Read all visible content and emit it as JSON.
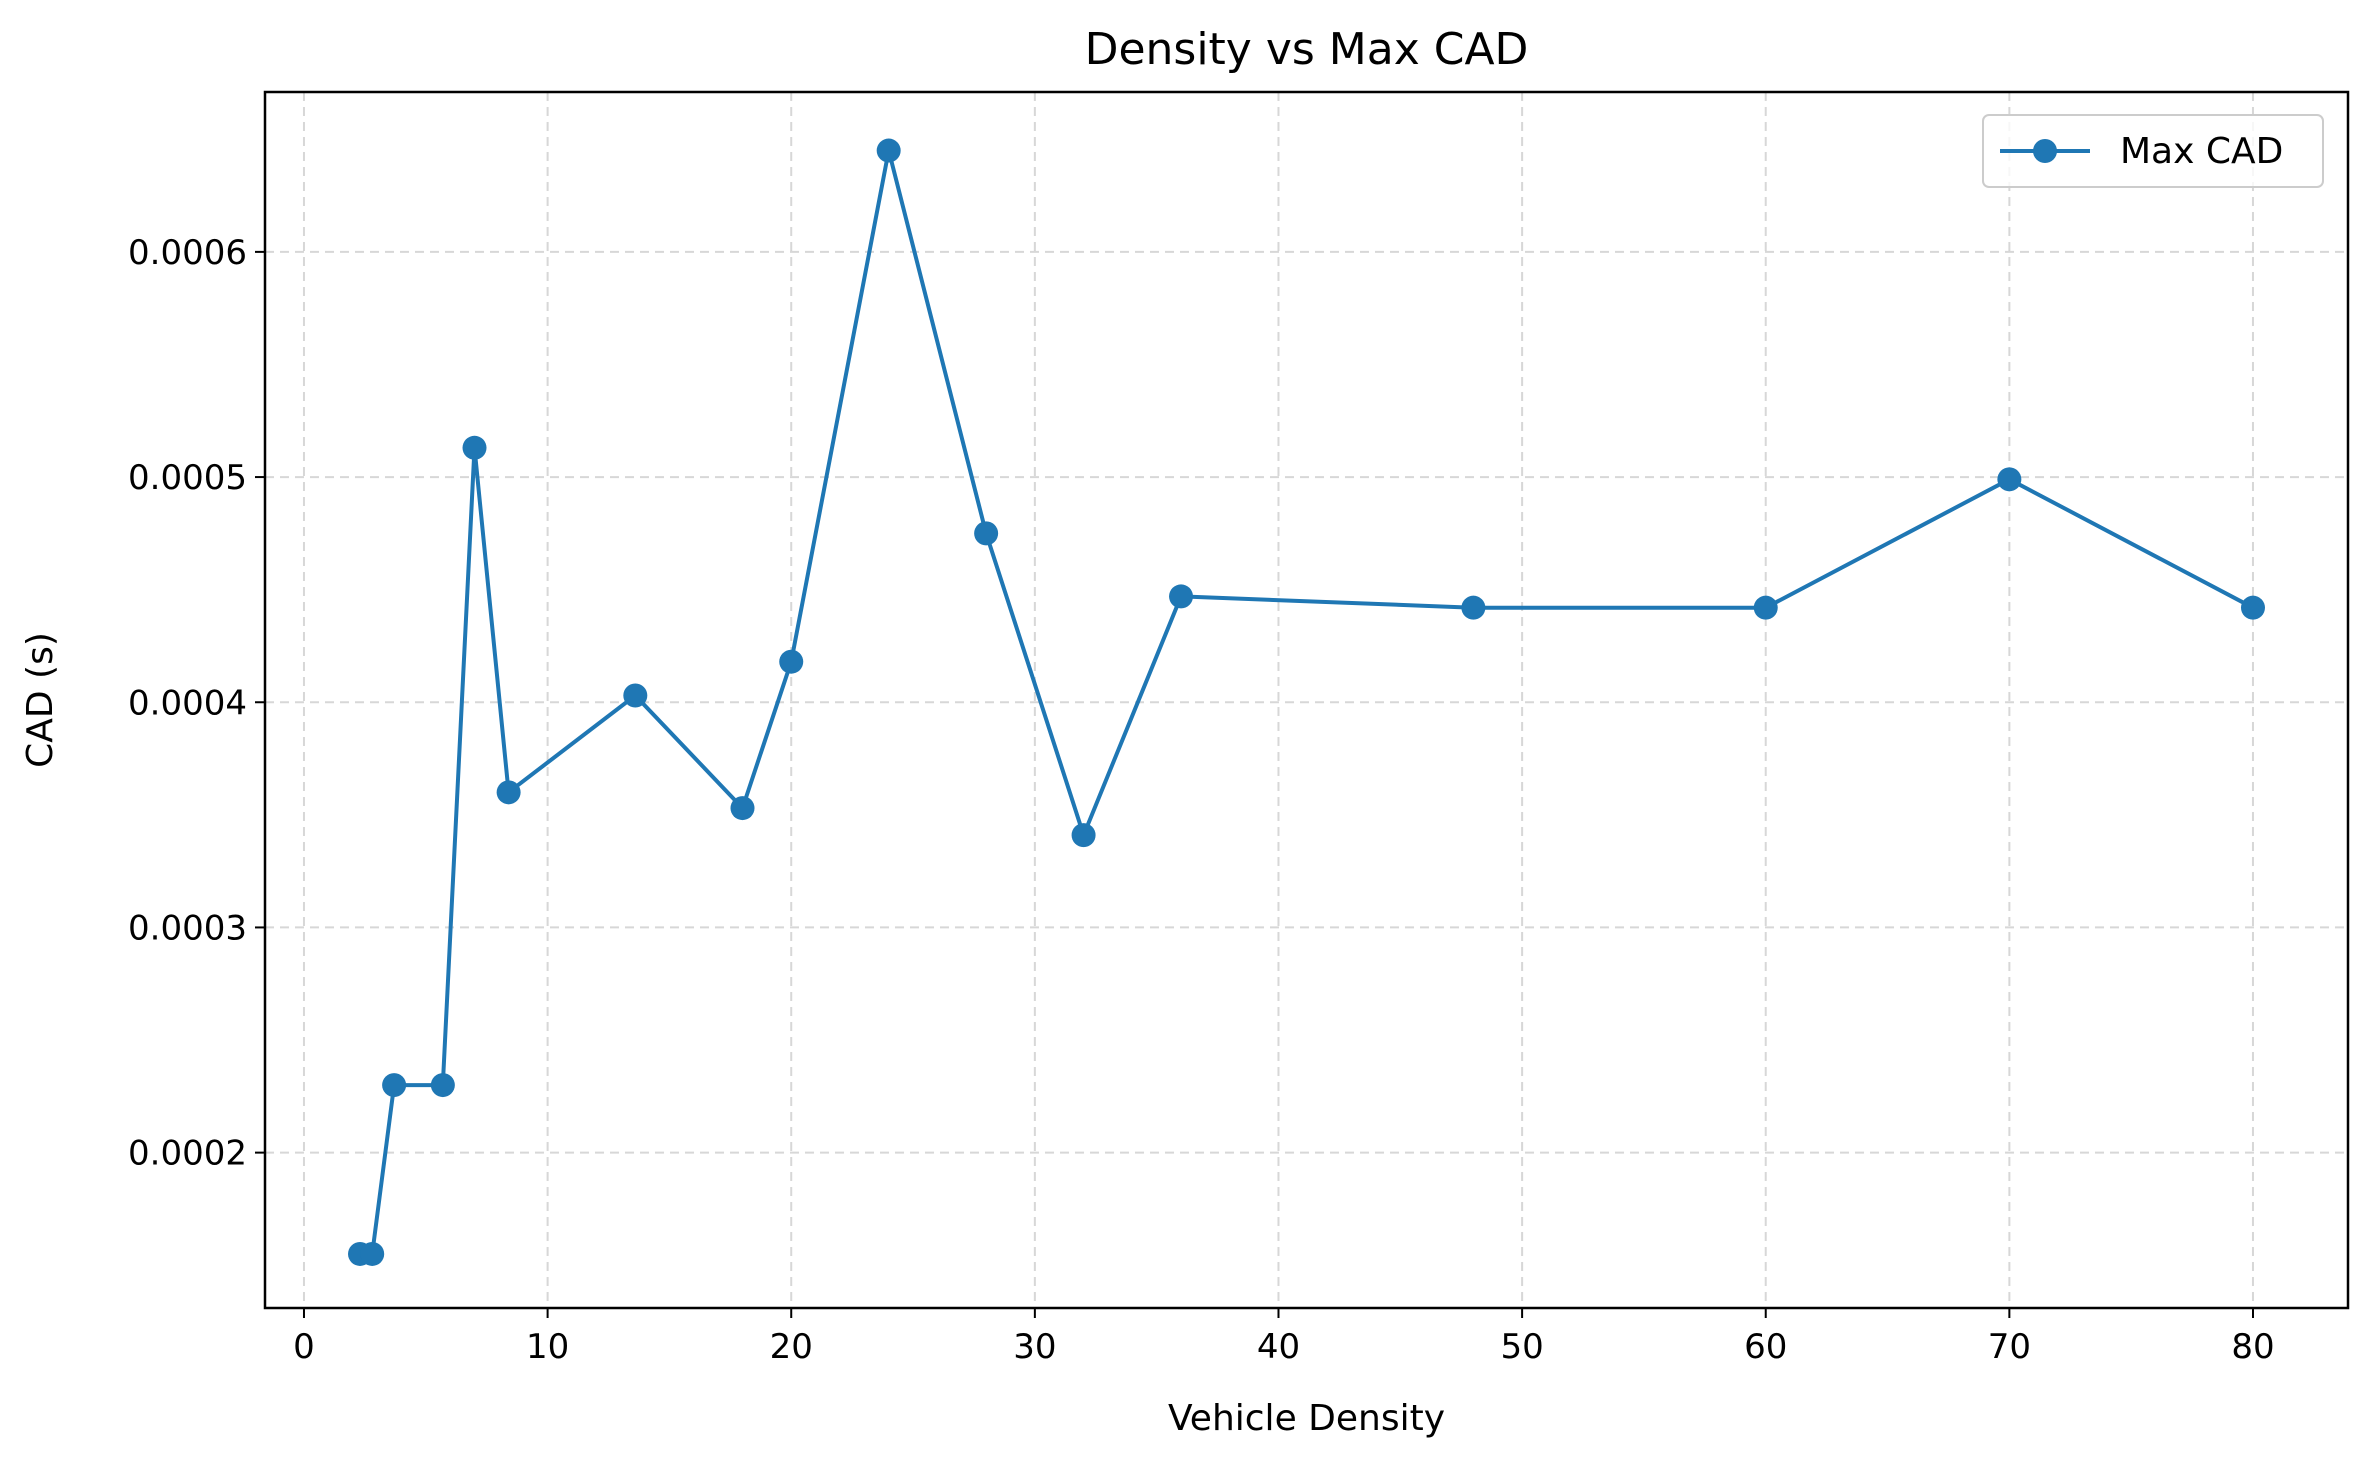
{
  "chart_data": {
    "type": "line",
    "title": "Density vs Max CAD",
    "xlabel": "Vehicle Density",
    "ylabel": "CAD (s)",
    "x": [
      2.3,
      2.8,
      3.7,
      5.7,
      7.0,
      8.4,
      13.6,
      18.0,
      20.0,
      24.0,
      28.0,
      32.0,
      36.0,
      48.0,
      60.0,
      70.0,
      80.0
    ],
    "series": [
      {
        "name": "Max CAD",
        "values": [
          0.000155,
          0.000155,
          0.00023,
          0.00023,
          0.000513,
          0.00036,
          0.000403,
          0.000353,
          0.000418,
          0.000645,
          0.000475,
          0.000341,
          0.000447,
          0.000442,
          0.000442,
          0.000499,
          0.000442
        ],
        "color": "#1f77b4",
        "marker": "circle"
      }
    ],
    "xlim": [
      -1.6,
      83.9
    ],
    "ylim": [
      0.000131,
      0.000671
    ],
    "xticks": [
      0,
      10,
      20,
      30,
      40,
      50,
      60,
      70,
      80
    ],
    "xtick_labels": [
      "0",
      "10",
      "20",
      "30",
      "40",
      "50",
      "60",
      "70",
      "80"
    ],
    "yticks": [
      0.0002,
      0.0003,
      0.0004,
      0.0005,
      0.0006
    ],
    "ytick_labels": [
      "0.0002",
      "0.0003",
      "0.0004",
      "0.0005",
      "0.0006"
    ],
    "grid": true,
    "grid_style": "dashed",
    "legend_position": "top-right"
  }
}
